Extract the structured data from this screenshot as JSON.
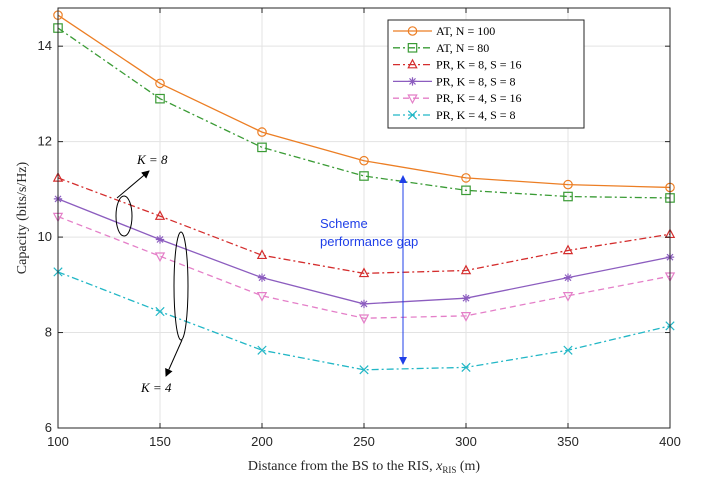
{
  "chart_data": {
    "type": "line",
    "x": [
      100,
      150,
      200,
      250,
      300,
      350,
      400
    ],
    "xlabel": "Distance from the BS to the RIS, x_RIS (m)",
    "ylabel": "Capacity (bits/s/Hz)",
    "xlim": [
      100,
      400
    ],
    "ylim": [
      6,
      14.8
    ],
    "xticks": [
      "100",
      "150",
      "200",
      "250",
      "300",
      "350",
      "400"
    ],
    "yticks": [
      "6",
      "8",
      "10",
      "12",
      "14"
    ],
    "grid": true,
    "legend_position": "top-right",
    "series": [
      {
        "name": "AT, N = 100",
        "color": "#ec7e24",
        "dash": "solid",
        "marker": "circle",
        "values": [
          14.65,
          13.22,
          12.2,
          11.6,
          11.24,
          11.1,
          11.04
        ]
      },
      {
        "name": "AT, N = 80",
        "color": "#3a9b35",
        "dash": "dashdot",
        "marker": "square",
        "values": [
          14.38,
          12.9,
          11.88,
          11.28,
          10.98,
          10.85,
          10.82
        ]
      },
      {
        "name": "PR, K = 8, S = 16",
        "color": "#d42d2d",
        "dash": "dashdot",
        "marker": "triangle-up",
        "values": [
          11.24,
          10.44,
          9.62,
          9.24,
          9.3,
          9.72,
          10.06
        ]
      },
      {
        "name": "PR, K = 8, S = 8",
        "color": "#8c5dbf",
        "dash": "solid",
        "marker": "star",
        "values": [
          10.8,
          9.95,
          9.15,
          8.6,
          8.72,
          9.15,
          9.58
        ]
      },
      {
        "name": "PR, K = 4, S = 16",
        "color": "#e47fc8",
        "dash": "dashed",
        "marker": "triangle-down",
        "values": [
          10.43,
          9.6,
          8.77,
          8.3,
          8.35,
          8.77,
          9.18
        ]
      },
      {
        "name": "PR, K = 4, S = 8",
        "color": "#22b7c6",
        "dash": "dashdot",
        "marker": "x",
        "values": [
          9.27,
          8.44,
          7.63,
          7.22,
          7.27,
          7.63,
          8.14
        ]
      }
    ],
    "annotations": {
      "k8": "K = 8",
      "k4": "K = 4",
      "gap_line1": "Scheme",
      "gap_line2": "performance gap"
    }
  }
}
